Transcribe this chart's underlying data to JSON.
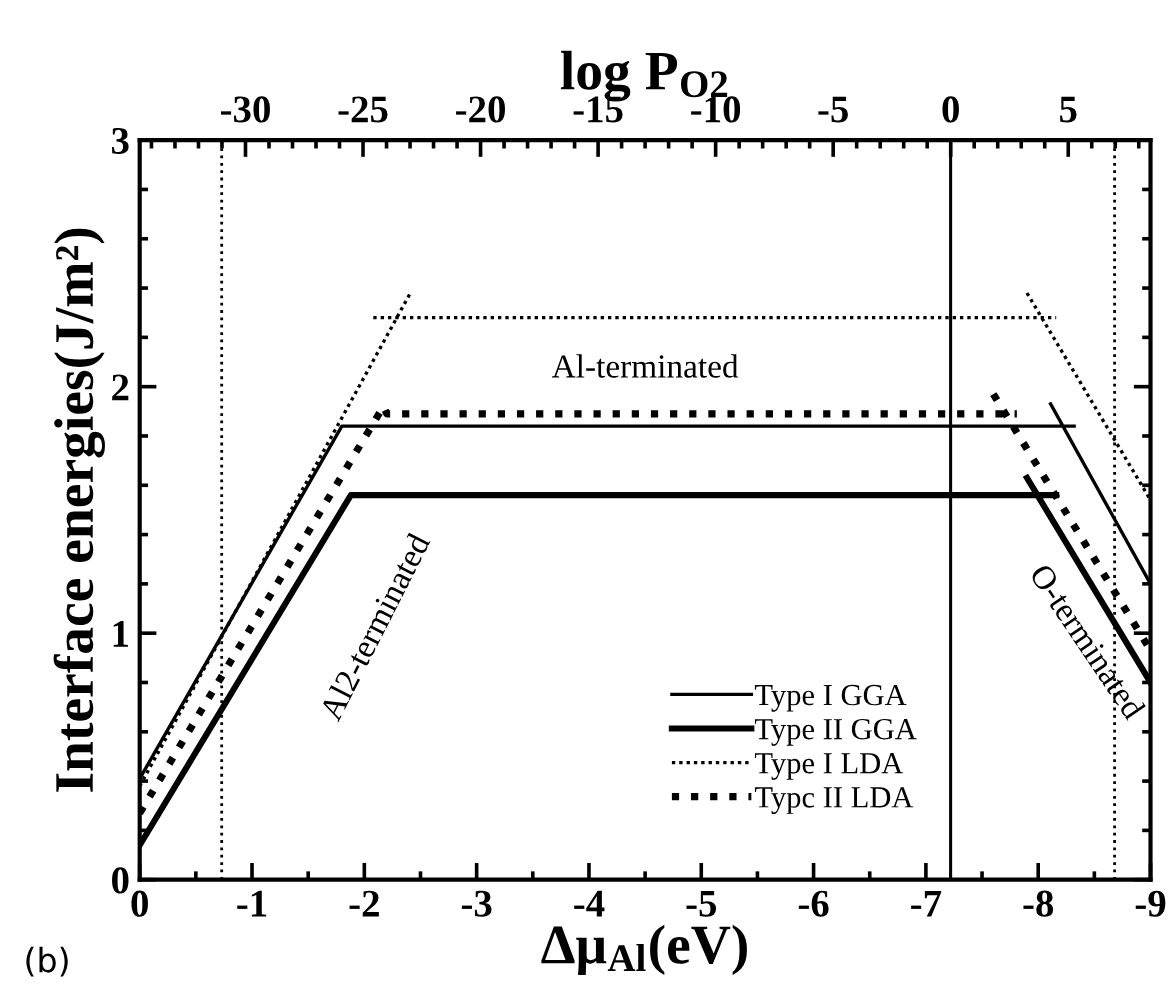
{
  "chart_data": {
    "type": "line",
    "xlabel": "Δμ$_{Al}$(eV)",
    "ylabel": "Interface energies(J/m²)",
    "x2label": "log P$_{O2}$",
    "xlim": [
      0,
      -9
    ],
    "xticks": [
      0,
      -1,
      -2,
      -3,
      -4,
      -5,
      -6,
      -7,
      -8,
      -9
    ],
    "ylim": [
      0,
      3
    ],
    "yticks": [
      0,
      1,
      2,
      3
    ],
    "x2lim": [
      -34.5,
      8.5
    ],
    "x2ticks": [
      -30,
      -25,
      -20,
      -15,
      -10,
      -5,
      0,
      5
    ],
    "series": [
      {
        "name": "Type I GGA",
        "color": "#000000",
        "line_style": "solid",
        "x": [
          0,
          -1.8,
          -8.32,
          null,
          -8.11,
          -9
        ],
        "values": [
          0.41,
          1.84,
          1.84,
          null,
          1.93,
          1.2
        ]
      },
      {
        "name": "Type II GGA",
        "color": "#000000",
        "line_style": "solid",
        "x": [
          0,
          -1.88,
          -8.16,
          null,
          -7.9,
          -9
        ],
        "values": [
          0.14,
          1.56,
          1.56,
          null,
          1.63,
          0.8
        ]
      },
      {
        "name": "Type I LDA",
        "color": "#000000",
        "line_style": "dotted",
        "x": [
          0,
          -2.41,
          null,
          -2.08,
          -8.16,
          null,
          -7.9,
          -9
        ],
        "values": [
          0.38,
          2.38,
          null,
          2.28,
          2.28,
          null,
          2.38,
          1.54
        ]
      },
      {
        "name": "Typc II LDA",
        "color": "#000000",
        "line_style": "dotted",
        "x": [
          0,
          -2.17,
          -2.2,
          -7.81,
          null,
          -7.6,
          -9
        ],
        "values": [
          0.27,
          1.92,
          1.89,
          1.89,
          null,
          1.97,
          0.93
        ]
      }
    ],
    "ref_lines": [
      {
        "axis": "x",
        "value": -0.73,
        "color": "#000000",
        "line_style": "dotted"
      },
      {
        "axis": "x",
        "value": -7.22,
        "color": "#000000",
        "line_style": "solid"
      },
      {
        "axis": "x",
        "value": -8.68,
        "color": "#000000",
        "line_style": "dotted"
      }
    ],
    "annotations": [
      "Al-terminated",
      "Al2-terminated",
      "O-terminated",
      "(b)"
    ],
    "legend": "bottom right",
    "grid": false,
    "marker": "none"
  }
}
